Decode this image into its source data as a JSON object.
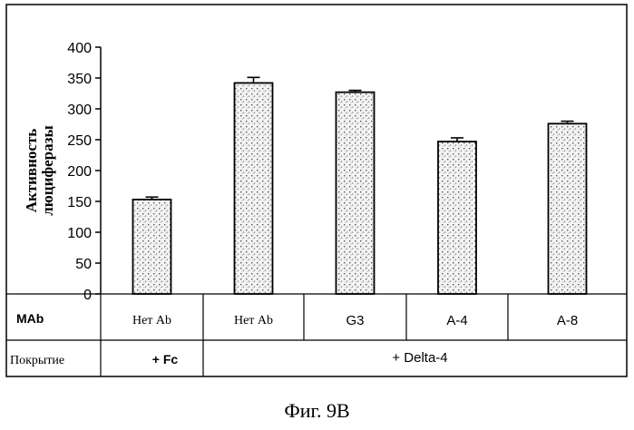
{
  "chart_data": {
    "type": "bar",
    "ylabel_lines": [
      "Активность",
      "люциферазы"
    ],
    "ylim": [
      0,
      400
    ],
    "yticks": [
      0,
      50,
      100,
      150,
      200,
      250,
      300,
      350,
      400
    ],
    "categories": [
      "Нет Ab",
      "Нет Ab",
      "G3",
      "A-4",
      "A-8"
    ],
    "values": [
      153,
      342,
      327,
      247,
      276
    ],
    "errors": [
      4,
      9,
      3,
      6,
      4
    ],
    "grid": false,
    "legend": "none",
    "table": {
      "row1_label": "MAb",
      "row2_label": "Покрытие",
      "coating_groups": [
        "+ Fc",
        "+ Delta-4"
      ]
    }
  },
  "caption": "Фиг. 9В"
}
